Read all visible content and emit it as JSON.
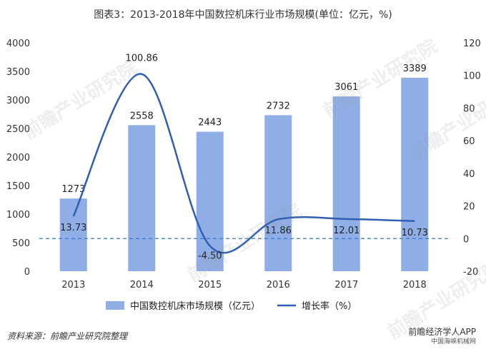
{
  "title": "图表3：2013-2018年中国数控机床行业市场规模(单位：亿元，%)",
  "source": "资料来源：前瞻产业研究院整理",
  "brand": {
    "line1": "前瞻经济学人APP",
    "line2": "中国海峡机械网"
  },
  "watermark": "前瞻产业研究院",
  "chart_data": {
    "type": "bar",
    "categories": [
      "2013",
      "2014",
      "2015",
      "2016",
      "2017",
      "2018"
    ],
    "series": [
      {
        "name": "中国数控机床市场规模（亿元）",
        "type": "bar",
        "axis": "left",
        "values": [
          1273,
          2558,
          2443,
          2732,
          3061,
          3389
        ],
        "labels": [
          "1273",
          "2558",
          "2443",
          "2732",
          "3061",
          "3389"
        ],
        "color": "#8faee6"
      },
      {
        "name": "增长率（%）",
        "type": "line",
        "axis": "right",
        "smooth": true,
        "values": [
          13.73,
          100.86,
          -4.5,
          11.86,
          12.01,
          10.73
        ],
        "labels": [
          "13.73",
          "100.86",
          "-4.50",
          "11.86",
          "12.01",
          "10.73"
        ],
        "color": "#2e5fb3"
      }
    ],
    "y_left": {
      "min": 0,
      "max": 4000,
      "step": 500,
      "ticks": [
        "0",
        "500",
        "1000",
        "1500",
        "2000",
        "2500",
        "3000",
        "3500",
        "4000"
      ]
    },
    "y_right": {
      "min": -20,
      "max": 120,
      "step": 20,
      "ticks": [
        "-20",
        "0",
        "20",
        "40",
        "60",
        "80",
        "100",
        "120"
      ]
    },
    "reference_line": {
      "axis": "right",
      "value": 0,
      "style": "dashed",
      "color": "#3a78c9"
    },
    "legend_position": "bottom",
    "grid": false
  }
}
